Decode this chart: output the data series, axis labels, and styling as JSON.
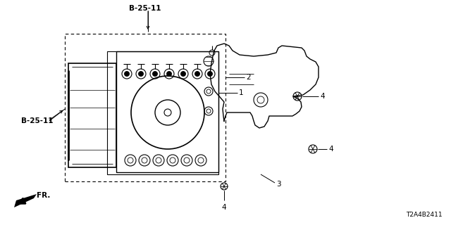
{
  "background_color": "#ffffff",
  "part_number": "T2A4B2411",
  "direction_label": "FR.",
  "labels": {
    "B25_11_top": "B-25-11",
    "B25_11_left": "B-25-11",
    "label_1": "1",
    "label_2": "2",
    "label_3": "3",
    "label_4a": "4",
    "label_4b": "4",
    "label_4c": "4"
  },
  "line_color": "#000000",
  "text_color": "#000000"
}
